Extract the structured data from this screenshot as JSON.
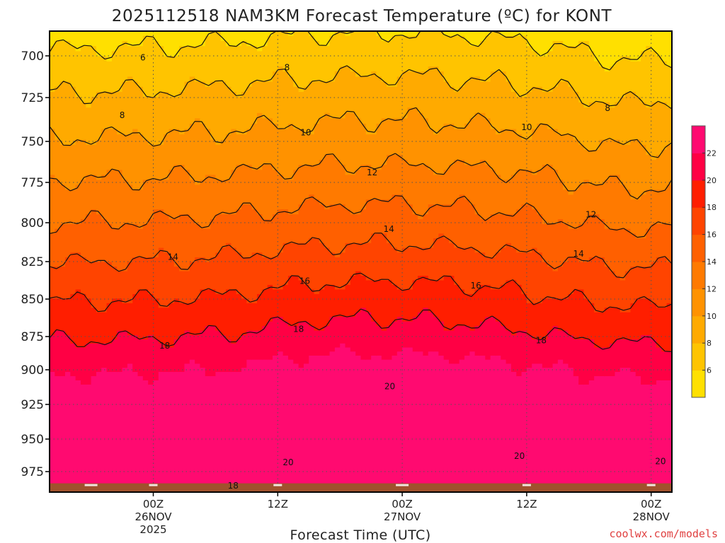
{
  "chart_data": {
    "type": "heatmap",
    "title": "2025112518 NAM3KM Forecast Temperature (ºC) for KONT",
    "xlabel": "Forecast Time (UTC)",
    "ylabel": "",
    "credit": "coolwx.com/models",
    "y_axis": {
      "quantity": "pressure (hPa)",
      "range": [
        990,
        685
      ],
      "ticks": [
        "700",
        "725",
        "750",
        "775",
        "800",
        "825",
        "850",
        "875",
        "900",
        "925",
        "950",
        "975"
      ],
      "grid": true
    },
    "x_axis": {
      "range_hours": [
        -10,
        50
      ],
      "ticks": [
        {
          "hour": 0,
          "line1": "00Z",
          "line2": "26NOV",
          "line3": "2025"
        },
        {
          "hour": 12,
          "line1": "12Z",
          "line2": "",
          "line3": ""
        },
        {
          "hour": 24,
          "line1": "00Z",
          "line2": "27NOV",
          "line3": ""
        },
        {
          "hour": 36,
          "line1": "12Z",
          "line2": "",
          "line3": ""
        },
        {
          "hour": 48,
          "line1": "00Z",
          "line2": "28NOV",
          "line3": ""
        }
      ],
      "grid": true
    },
    "colorbar": {
      "placement": "right",
      "levels": [
        "6",
        "8",
        "10",
        "12",
        "14",
        "16",
        "18",
        "20",
        "22"
      ],
      "colors": [
        "#ffe000",
        "#ffc400",
        "#ffaa00",
        "#ff9200",
        "#ff7a00",
        "#ff6000",
        "#ff4400",
        "#ff1e00",
        "#ff0044",
        "#ff0a70"
      ]
    },
    "contour_levels": [
      6,
      8,
      10,
      12,
      14,
      16,
      18,
      20
    ],
    "contour_labels": [
      {
        "text": "6",
        "hour": -1.0,
        "pressure": 701
      },
      {
        "text": "8",
        "hour": 12.9,
        "pressure": 707
      },
      {
        "text": "8",
        "hour": -3.0,
        "pressure": 735
      },
      {
        "text": "8",
        "hour": 43.8,
        "pressure": 731
      },
      {
        "text": "10",
        "hour": 14.7,
        "pressure": 745
      },
      {
        "text": "10",
        "hour": 36.0,
        "pressure": 742
      },
      {
        "text": "12",
        "hour": 21.1,
        "pressure": 769
      },
      {
        "text": "12",
        "hour": 42.2,
        "pressure": 795
      },
      {
        "text": "14",
        "hour": 1.9,
        "pressure": 822
      },
      {
        "text": "14",
        "hour": 22.7,
        "pressure": 804
      },
      {
        "text": "14",
        "hour": 41.0,
        "pressure": 820
      },
      {
        "text": "16",
        "hour": 14.6,
        "pressure": 838
      },
      {
        "text": "16",
        "hour": 31.1,
        "pressure": 841
      },
      {
        "text": "18",
        "hour": 1.1,
        "pressure": 882
      },
      {
        "text": "18",
        "hour": 14.0,
        "pressure": 870
      },
      {
        "text": "18",
        "hour": 37.4,
        "pressure": 878
      },
      {
        "text": "18",
        "hour": 7.7,
        "pressure": 986
      },
      {
        "text": "20",
        "hour": 22.8,
        "pressure": 912
      },
      {
        "text": "20",
        "hour": 13.0,
        "pressure": 968
      },
      {
        "text": "20",
        "hour": 35.3,
        "pressure": 963
      },
      {
        "text": "20",
        "hour": 48.9,
        "pressure": 967
      }
    ],
    "ground_color": "#a0522d",
    "ground_pressure": 984
  }
}
